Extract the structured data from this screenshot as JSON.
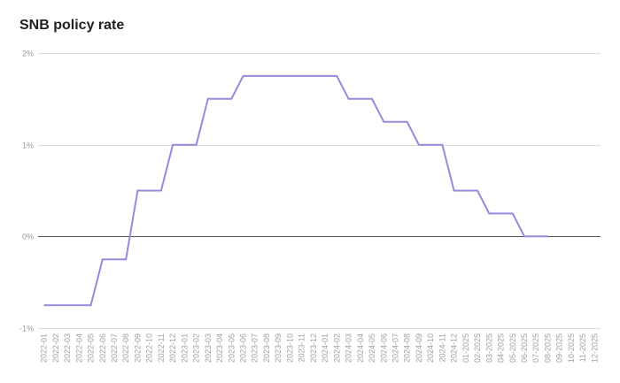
{
  "chart_data": {
    "type": "line",
    "title": "SNB policy rate",
    "xlabel": "",
    "ylabel": "",
    "ylim": [
      -1,
      2
    ],
    "yticks": [
      2,
      1,
      0,
      -1
    ],
    "ytick_labels": [
      "2%",
      "1%",
      "0%",
      "-1%"
    ],
    "grid": true,
    "legend": null,
    "line_color": "#9b87dc",
    "categories": [
      "2022-01",
      "2022-02",
      "2022-03",
      "2022-04",
      "2022-05",
      "2022-06",
      "2022-07",
      "2022-08",
      "2022-09",
      "2022-10",
      "2022-11",
      "2022-12",
      "2023-01",
      "2023-02",
      "2023-03",
      "2023-04",
      "2023-05",
      "2023-06",
      "2023-07",
      "2023-08",
      "2023-09",
      "2023-10",
      "2023-11",
      "2023-12",
      "2024-01",
      "2024-02",
      "2024-03",
      "2024-04",
      "2024-05",
      "2024-06",
      "2024-07",
      "2024-08",
      "2024-09",
      "2024-10",
      "2024-11",
      "2024-12",
      "01-2025",
      "02-2025",
      "03-2025",
      "04-2025",
      "05-2025",
      "06-2025",
      "07-2025",
      "08-2025",
      "09-2025",
      "10-2025",
      "11-2025",
      "12-2025"
    ],
    "series": [
      {
        "name": "SNB policy rate",
        "values": [
          -0.75,
          -0.75,
          -0.75,
          -0.75,
          -0.75,
          -0.25,
          -0.25,
          -0.25,
          0.5,
          0.5,
          0.5,
          1.0,
          1.0,
          1.0,
          1.5,
          1.5,
          1.5,
          1.75,
          1.75,
          1.75,
          1.75,
          1.75,
          1.75,
          1.75,
          1.75,
          1.75,
          1.5,
          1.5,
          1.5,
          1.25,
          1.25,
          1.25,
          1.0,
          1.0,
          1.0,
          0.5,
          0.5,
          0.5,
          0.25,
          0.25,
          0.25,
          0.0,
          0.0,
          0.0,
          null,
          null,
          null,
          null
        ]
      }
    ]
  }
}
